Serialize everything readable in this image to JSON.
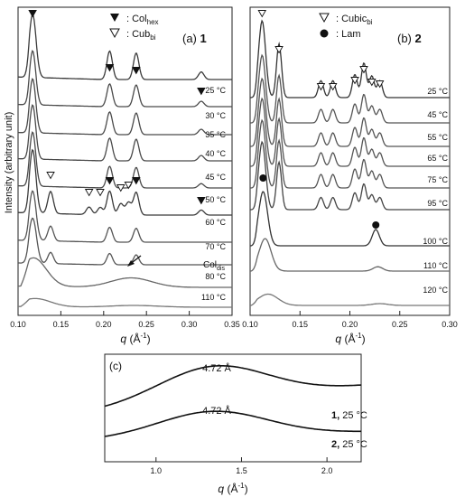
{
  "chart_data": [
    {
      "panel": "a",
      "type": "line",
      "label_prefix": "(a)",
      "label_number": "1",
      "xlabel_var": "q",
      "xlabel_unit": " (Å",
      "xlabel_sup": "-1",
      "xlabel_close": ")",
      "ylabel": "Intensity (arbitrary unit)",
      "xlim": [
        0.1,
        0.35
      ],
      "xticks": [
        "0.10",
        "0.15",
        "0.20",
        "0.25",
        "0.30",
        "0.35"
      ],
      "legend": [
        {
          "marker": "filled-triangle",
          "text": ": Col",
          "sub": "hex"
        },
        {
          "marker": "open-triangle",
          "text": ": Cub",
          "sub": "bi"
        }
      ],
      "series": [
        {
          "name": "25 °C",
          "peaks": [
            [
              0.117,
              1.0
            ],
            [
              0.207,
              0.45
            ],
            [
              0.238,
              0.42
            ],
            [
              0.314,
              0.12
            ]
          ]
        },
        {
          "name": "30 °C",
          "peaks": [
            [
              0.117,
              1.0
            ],
            [
              0.207,
              0.42
            ],
            [
              0.238,
              0.4
            ],
            [
              0.314,
              0.1
            ]
          ]
        },
        {
          "name": "35 °C",
          "peaks": [
            [
              0.117,
              1.0
            ],
            [
              0.207,
              0.42
            ],
            [
              0.238,
              0.4
            ],
            [
              0.314,
              0.1
            ]
          ]
        },
        {
          "name": "40 °C",
          "peaks": [
            [
              0.117,
              1.0
            ],
            [
              0.207,
              0.42
            ],
            [
              0.238,
              0.4
            ],
            [
              0.314,
              0.1
            ]
          ]
        },
        {
          "name": "45 °C",
          "peaks": [
            [
              0.117,
              1.0
            ],
            [
              0.207,
              0.4
            ],
            [
              0.238,
              0.38
            ],
            [
              0.314,
              0.08
            ]
          ]
        },
        {
          "name": "50 °C",
          "peaks": [
            [
              0.117,
              1.0
            ],
            [
              0.138,
              0.35
            ],
            [
              0.183,
              0.12
            ],
            [
              0.196,
              0.12
            ],
            [
              0.207,
              0.38
            ],
            [
              0.22,
              0.18
            ],
            [
              0.229,
              0.2
            ],
            [
              0.238,
              0.36
            ],
            [
              0.314,
              0.08
            ]
          ]
        },
        {
          "name": "60 °C",
          "peaks": [
            [
              0.117,
              1.0
            ],
            [
              0.138,
              0.3
            ],
            [
              0.207,
              0.3
            ],
            [
              0.238,
              0.28
            ]
          ]
        },
        {
          "name": "70 °C",
          "peaks": [
            [
              0.117,
              1.0
            ],
            [
              0.138,
              0.25
            ],
            [
              0.207,
              0.25
            ],
            [
              0.238,
              0.22
            ]
          ]
        },
        {
          "name": "80 °C",
          "peaks": [
            [
              0.118,
              0.9
            ],
            [
              0.232,
              0.3
            ]
          ]
        },
        {
          "name": "110 °C",
          "peaks": [
            [
              0.12,
              0.45
            ],
            [
              0.235,
              0.1
            ]
          ]
        }
      ],
      "annotations": [
        {
          "text": "Col",
          "sub": "dis"
        }
      ]
    },
    {
      "panel": "b",
      "type": "line",
      "label_prefix": "(b)",
      "label_number": "2",
      "xlabel_var": "q",
      "xlabel_unit": " (Å",
      "xlabel_sup": "-1",
      "xlabel_close": ")",
      "xlim": [
        0.1,
        0.3
      ],
      "xticks": [
        "0.10",
        "0.15",
        "0.20",
        "0.25",
        "0.30"
      ],
      "legend": [
        {
          "marker": "open-triangle",
          "text": ": Cubic",
          "sub": "bi"
        },
        {
          "marker": "filled-circle",
          "text": ": Lam",
          "sub": ""
        }
      ],
      "series": [
        {
          "name": "25 °C",
          "peaks": [
            [
              0.112,
              1.0
            ],
            [
              0.129,
              0.7
            ],
            [
              0.171,
              0.22
            ],
            [
              0.183,
              0.22
            ],
            [
              0.205,
              0.3
            ],
            [
              0.214,
              0.45
            ],
            [
              0.222,
              0.28
            ],
            [
              0.23,
              0.22
            ]
          ]
        },
        {
          "name": "45 °C",
          "peaks": [
            [
              0.112,
              1.0
            ],
            [
              0.129,
              0.7
            ],
            [
              0.171,
              0.2
            ],
            [
              0.183,
              0.2
            ],
            [
              0.205,
              0.28
            ],
            [
              0.214,
              0.42
            ],
            [
              0.222,
              0.25
            ],
            [
              0.23,
              0.2
            ]
          ]
        },
        {
          "name": "55 °C",
          "peaks": [
            [
              0.112,
              1.0
            ],
            [
              0.129,
              0.7
            ],
            [
              0.171,
              0.2
            ],
            [
              0.183,
              0.2
            ],
            [
              0.205,
              0.28
            ],
            [
              0.214,
              0.42
            ],
            [
              0.222,
              0.25
            ],
            [
              0.23,
              0.2
            ]
          ]
        },
        {
          "name": "65 °C",
          "peaks": [
            [
              0.112,
              1.0
            ],
            [
              0.129,
              0.7
            ],
            [
              0.171,
              0.2
            ],
            [
              0.183,
              0.2
            ],
            [
              0.205,
              0.28
            ],
            [
              0.214,
              0.42
            ],
            [
              0.222,
              0.25
            ],
            [
              0.23,
              0.2
            ]
          ]
        },
        {
          "name": "75 °C",
          "peaks": [
            [
              0.112,
              1.0
            ],
            [
              0.129,
              0.7
            ],
            [
              0.171,
              0.2
            ],
            [
              0.183,
              0.2
            ],
            [
              0.205,
              0.28
            ],
            [
              0.214,
              0.42
            ],
            [
              0.222,
              0.25
            ],
            [
              0.23,
              0.2
            ]
          ]
        },
        {
          "name": "95 °C",
          "peaks": [
            [
              0.112,
              1.0
            ],
            [
              0.129,
              0.7
            ],
            [
              0.171,
              0.18
            ],
            [
              0.183,
              0.18
            ],
            [
              0.205,
              0.25
            ],
            [
              0.214,
              0.38
            ],
            [
              0.222,
              0.22
            ],
            [
              0.23,
              0.18
            ]
          ]
        },
        {
          "name": "100 °C",
          "peaks": [
            [
              0.113,
              1.0
            ],
            [
              0.226,
              0.3
            ]
          ]
        },
        {
          "name": "110 °C",
          "peaks": [
            [
              0.115,
              0.9
            ],
            [
              0.228,
              0.12
            ]
          ]
        },
        {
          "name": "120 °C",
          "peaks": [
            [
              0.118,
              0.5
            ],
            [
              0.23,
              0.08
            ]
          ]
        }
      ]
    },
    {
      "panel": "c",
      "type": "line",
      "label_prefix": "(c)",
      "xlabel_var": "q",
      "xlabel_unit": " (Å",
      "xlabel_sup": "-1",
      "xlabel_close": ")",
      "xlim": [
        0.7,
        2.2
      ],
      "xticks": [
        "1.0",
        "1.5",
        "2.0"
      ],
      "series": [
        {
          "name_number": "1,",
          "name_temp": " 25 °C",
          "peak_q": 1.33,
          "peak_label": "4.72 Å"
        },
        {
          "name_number": "2,",
          "name_temp": " 25 °C",
          "peak_q": 1.33,
          "peak_label": "4.72 Å"
        }
      ]
    }
  ]
}
